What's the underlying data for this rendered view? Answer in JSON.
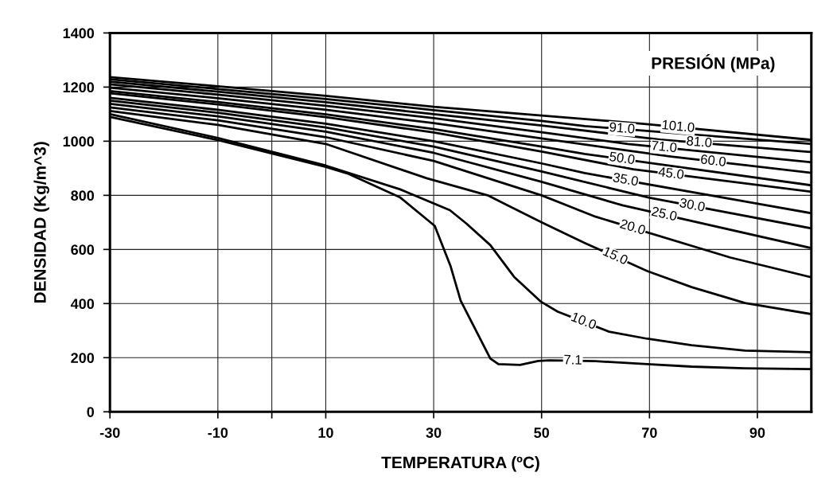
{
  "chart_data": {
    "type": "line",
    "xlabel": "TEMPERATURA (ºC)",
    "ylabel": "DENSIDAD (Kg/m^3)",
    "annotations": [
      "PRESIÓN (MPa)"
    ],
    "xlim": [
      -30,
      100
    ],
    "ylim": [
      0,
      1400
    ],
    "xticks": [
      -30,
      -10,
      {
        "value": 0,
        "label": null
      },
      10,
      30,
      50,
      70,
      90
    ],
    "yticks": [
      0,
      200,
      400,
      600,
      800,
      1000,
      1200,
      1400
    ],
    "grid": true,
    "marker": "none",
    "line_style": "solid",
    "series": [
      {
        "name": "101.0",
        "color": "#000000",
        "x": [
          -30,
          -10,
          10,
          30,
          50,
          69,
          100
        ],
        "values": [
          1237,
          1203,
          1168,
          1127,
          1095,
          1064,
          1005
        ]
      },
      {
        "name": "91.0",
        "color": "#000000",
        "x": [
          -30,
          -10,
          10,
          30,
          50,
          58,
          100
        ],
        "values": [
          1229,
          1193,
          1156,
          1115,
          1075,
          1056,
          990
        ]
      },
      {
        "name": "81.0",
        "color": "#000000",
        "x": [
          -30,
          -10,
          10,
          30,
          50,
          72,
          100
        ],
        "values": [
          1220,
          1183,
          1144,
          1100,
          1058,
          1006,
          960
        ]
      },
      {
        "name": "71.0",
        "color": "#000000",
        "x": [
          -30,
          -10,
          10,
          30,
          50,
          66,
          100
        ],
        "values": [
          1210,
          1172,
          1131,
          1085,
          1033,
          990,
          922
        ]
      },
      {
        "name": "60.0",
        "color": "#000000",
        "x": [
          -30,
          -10,
          10,
          30,
          50,
          74,
          100
        ],
        "values": [
          1198,
          1159,
          1116,
          1067,
          1010,
          943,
          883
        ]
      },
      {
        "name": "50.0",
        "color": "#000000",
        "x": [
          -30,
          -10,
          10,
          30,
          50,
          58,
          100
        ],
        "values": [
          1185,
          1145,
          1099,
          1045,
          980,
          953,
          837
        ]
      },
      {
        "name": "45.0",
        "color": "#000000",
        "x": [
          -30,
          -10,
          10,
          30,
          50,
          67,
          100
        ],
        "values": [
          1177,
          1136,
          1089,
          1032,
          962,
          896,
          813
        ]
      },
      {
        "name": "35.0",
        "color": "#000000",
        "x": [
          -30,
          -10,
          10,
          30,
          50,
          58,
          100
        ],
        "values": [
          1160,
          1116,
          1065,
          1000,
          918,
          882,
          734
        ]
      },
      {
        "name": "30.0",
        "color": "#000000",
        "x": [
          -30,
          -10,
          10,
          30,
          50,
          70,
          100
        ],
        "values": [
          1150,
          1105,
          1051,
          980,
          888,
          791,
          678
        ]
      },
      {
        "name": "25.0",
        "color": "#000000",
        "x": [
          -30,
          -10,
          10,
          30,
          50,
          65,
          100
        ],
        "values": [
          1138,
          1092,
          1035,
          957,
          850,
          763,
          605
        ]
      },
      {
        "name": "20.0",
        "color": "#000000",
        "x": [
          -30,
          -10,
          10,
          30,
          50,
          60,
          85,
          100
        ],
        "values": [
          1125,
          1077,
          1015,
          927,
          800,
          721,
          570,
          497
        ]
      },
      {
        "name": "15.0",
        "color": "#000000",
        "x": [
          -30,
          -10,
          10,
          28.7,
          40,
          50,
          58,
          69.6,
          77.8,
          87.7,
          100
        ],
        "values": [
          1112,
          1060,
          990,
          863,
          800,
          700,
          624,
          520,
          461,
          402,
          361
        ]
      },
      {
        "name": "10.0",
        "color": "#000000",
        "x": [
          -30,
          -10,
          10,
          23.8,
          33,
          36.1,
          40.5,
          44.9,
          49.8,
          53,
          62.5,
          69.6,
          77.8,
          87.7,
          100
        ],
        "values": [
          1100,
          1012,
          910,
          822,
          745,
          695,
          616,
          499,
          408,
          370,
          296,
          270,
          246,
          226,
          220
        ]
      },
      {
        "name": "7.1",
        "color": "#000000",
        "x": [
          -30,
          -10,
          10,
          14,
          23.8,
          30.2,
          33.1,
          35,
          40.5,
          42,
          46,
          49.4,
          51.5,
          60,
          69.6,
          77.8,
          87.7,
          100
        ],
        "values": [
          1090,
          1004,
          905,
          881,
          792,
          687,
          540,
          411,
          197,
          176,
          173,
          188,
          190,
          187,
          176,
          167,
          161,
          158
        ]
      }
    ]
  }
}
